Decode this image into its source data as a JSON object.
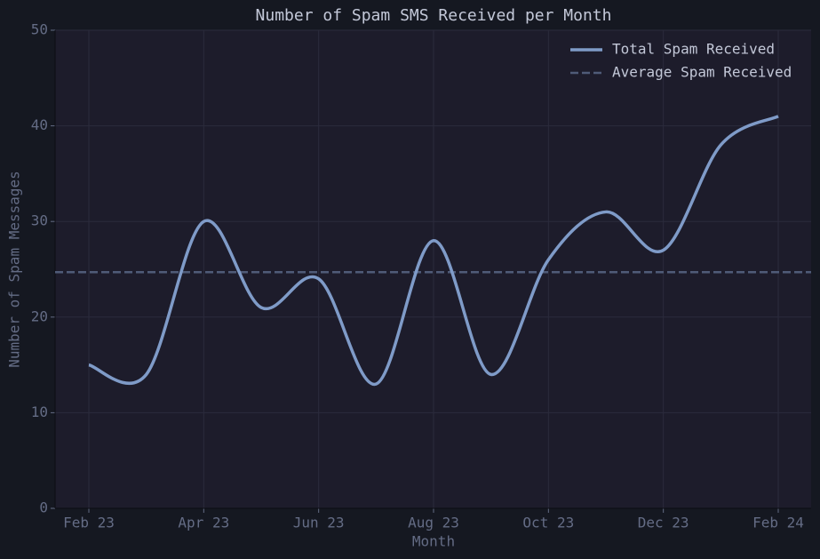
{
  "chart_data": {
    "type": "line",
    "title": "Number of Spam SMS Received per Month",
    "xlabel": "Month",
    "ylabel": "Number of Spam Messages",
    "x": [
      "2023-02",
      "2023-03",
      "2023-04",
      "2023-05",
      "2023-06",
      "2023-07",
      "2023-08",
      "2023-09",
      "2023-10",
      "2023-11",
      "2023-12",
      "2024-01",
      "2024-02"
    ],
    "xticks": [
      {
        "value": "2023-02",
        "label": "Feb 23"
      },
      {
        "value": "2023-04",
        "label": "Apr 23"
      },
      {
        "value": "2023-06",
        "label": "Jun 23"
      },
      {
        "value": "2023-08",
        "label": "Aug 23"
      },
      {
        "value": "2023-10",
        "label": "Oct 23"
      },
      {
        "value": "2023-12",
        "label": "Dec 23"
      },
      {
        "value": "2024-02",
        "label": "Feb 24"
      }
    ],
    "series": [
      {
        "name": "Total Spam Received",
        "color": "#7f9bc8",
        "values": [
          15,
          14,
          30,
          21,
          24,
          13,
          28,
          14,
          26,
          31,
          27,
          38,
          41
        ]
      }
    ],
    "average": {
      "name": "Average Spam Received",
      "color": "#4f5b78",
      "value": 24.7
    },
    "ylim": [
      0,
      50
    ],
    "yticks": [
      0,
      10,
      20,
      30,
      40,
      50
    ],
    "grid": true,
    "legend": "upper right"
  }
}
